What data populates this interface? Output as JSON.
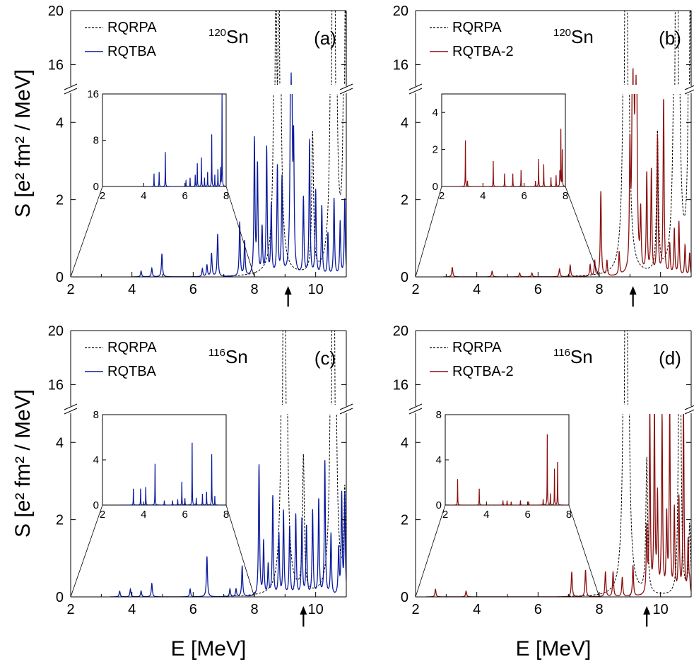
{
  "figure": {
    "ylabel": "S [e² fm² / MeV]",
    "xlabel": "E [MeV]"
  },
  "colors": {
    "rqrpa": "#000000",
    "rqtba": "#0a1a9c",
    "rqtba2": "#8b0f0f"
  },
  "chart_data": [
    {
      "type": "line",
      "panel": "(a)",
      "nucleus": "120",
      "nucleus_symbol": "Sn",
      "color": "#0a1a9c",
      "legend": [
        "RQRPA",
        "RQTBA"
      ],
      "xlim": [
        2,
        11
      ],
      "xticks": [
        "2",
        "4",
        "6",
        "8",
        "10"
      ],
      "ylim_lower": [
        0,
        4.7
      ],
      "ylim_upper": [
        14.5,
        20
      ],
      "yticks_lower": [
        "0",
        "2",
        "4"
      ],
      "yticks_upper": [
        "16",
        "20"
      ],
      "threshold_arrow_x": 9.1,
      "series_rqrpa_peaks": [
        [
          8.7,
          22
        ],
        [
          8.8,
          22
        ],
        [
          9.9,
          3.6
        ],
        [
          10.55,
          22
        ],
        [
          10.62,
          22
        ],
        [
          10.97,
          22
        ]
      ],
      "series_main_peaks": [
        [
          4.3,
          0.15
        ],
        [
          4.65,
          0.22
        ],
        [
          4.98,
          0.6
        ],
        [
          6.3,
          0.2
        ],
        [
          6.45,
          0.3
        ],
        [
          6.6,
          0.6
        ],
        [
          6.8,
          1.1
        ],
        [
          7.52,
          1.4
        ],
        [
          7.68,
          0.9
        ],
        [
          8.0,
          3.5
        ],
        [
          8.1,
          2.8
        ],
        [
          8.25,
          1.2
        ],
        [
          8.4,
          3.3
        ],
        [
          8.55,
          1.8
        ],
        [
          8.75,
          2.8
        ],
        [
          8.9,
          2.5
        ],
        [
          9.2,
          15.2
        ],
        [
          9.28,
          3.0
        ],
        [
          9.6,
          2.0
        ],
        [
          9.8,
          3.5
        ],
        [
          10.0,
          2.2
        ],
        [
          10.2,
          1.8
        ],
        [
          10.4,
          1.1
        ],
        [
          10.6,
          2.0
        ],
        [
          10.8,
          1.4
        ],
        [
          10.95,
          2.0
        ]
      ],
      "inset": {
        "xlim": [
          2,
          8
        ],
        "ylim": [
          0,
          16
        ],
        "xticks": [
          "2",
          "4",
          "6",
          "8"
        ],
        "yticks": [
          "0",
          "8",
          "16"
        ],
        "peaks": [
          [
            4.5,
            2.2
          ],
          [
            4.75,
            2.5
          ],
          [
            5.05,
            6.0
          ],
          [
            6.05,
            1.0
          ],
          [
            6.25,
            1.5
          ],
          [
            6.5,
            2.0
          ],
          [
            6.6,
            4.0
          ],
          [
            6.8,
            5.0
          ],
          [
            6.95,
            1.5
          ],
          [
            7.1,
            2.5
          ],
          [
            7.3,
            9.0
          ],
          [
            7.45,
            2.0
          ],
          [
            7.6,
            3.0
          ],
          [
            7.73,
            3.2
          ],
          [
            7.8,
            16.0
          ]
        ]
      }
    },
    {
      "type": "line",
      "panel": "(b)",
      "nucleus": "120",
      "nucleus_symbol": "Sn",
      "color": "#8b0f0f",
      "legend": [
        "RQRPA",
        "RQTBA-2"
      ],
      "xlim": [
        2,
        11
      ],
      "xticks": [
        "2",
        "4",
        "6",
        "8",
        "10"
      ],
      "ylim_lower": [
        0,
        4.7
      ],
      "ylim_upper": [
        14.5,
        20
      ],
      "yticks_lower": [
        "0",
        "2",
        "4"
      ],
      "yticks_upper": [
        "16",
        "20"
      ],
      "threshold_arrow_x": 9.1,
      "series_rqrpa_peaks": [
        [
          8.85,
          22
        ],
        [
          8.9,
          22
        ],
        [
          9.9,
          3.6
        ],
        [
          10.5,
          22
        ],
        [
          10.55,
          22
        ],
        [
          10.97,
          22
        ]
      ],
      "series_main_peaks": [
        [
          3.2,
          0.25
        ],
        [
          4.5,
          0.15
        ],
        [
          5.4,
          0.1
        ],
        [
          5.8,
          0.1
        ],
        [
          6.7,
          0.2
        ],
        [
          7.05,
          0.3
        ],
        [
          7.7,
          0.3
        ],
        [
          7.85,
          0.4
        ],
        [
          8.05,
          2.2
        ],
        [
          8.25,
          0.4
        ],
        [
          8.65,
          0.6
        ],
        [
          9.0,
          3.0
        ],
        [
          9.1,
          15.2
        ],
        [
          9.2,
          14.6
        ],
        [
          9.35,
          1.5
        ],
        [
          9.55,
          2.6
        ],
        [
          9.7,
          2.7
        ],
        [
          9.9,
          3.6
        ],
        [
          10.1,
          4.6
        ],
        [
          10.3,
          0.8
        ],
        [
          10.45,
          1.2
        ],
        [
          10.6,
          1.4
        ],
        [
          10.8,
          0.8
        ],
        [
          10.95,
          0.6
        ]
      ],
      "inset": {
        "xlim": [
          2,
          8
        ],
        "ylim": [
          0,
          5
        ],
        "xticks": [
          "2",
          "4",
          "6",
          "8"
        ],
        "yticks": [
          "0",
          "2",
          "4"
        ],
        "peaks": [
          [
            3.15,
            2.5
          ],
          [
            3.25,
            0.3
          ],
          [
            4.5,
            1.4
          ],
          [
            5.05,
            0.7
          ],
          [
            5.45,
            0.7
          ],
          [
            5.85,
            0.9
          ],
          [
            6.55,
            0.3
          ],
          [
            6.7,
            1.5
          ],
          [
            6.95,
            1.2
          ],
          [
            7.3,
            0.5
          ],
          [
            7.55,
            0.6
          ],
          [
            7.73,
            0.8
          ],
          [
            7.78,
            3.2
          ],
          [
            7.85,
            2.0
          ]
        ]
      }
    },
    {
      "type": "line",
      "panel": "(c)",
      "nucleus": "116",
      "nucleus_symbol": "Sn",
      "color": "#0a1a9c",
      "legend": [
        "RQRPA",
        "RQTBA"
      ],
      "xlim": [
        2,
        11
      ],
      "xticks": [
        "2",
        "4",
        "6",
        "8",
        "10"
      ],
      "ylim_lower": [
        0,
        4.7
      ],
      "ylim_upper": [
        14.5,
        20
      ],
      "yticks_lower": [
        "0",
        "2",
        "4"
      ],
      "yticks_upper": [
        "16",
        "20"
      ],
      "threshold_arrow_x": 9.6,
      "series_rqrpa_peaks": [
        [
          8.95,
          22
        ],
        [
          9.0,
          22
        ],
        [
          9.6,
          3.5
        ],
        [
          10.55,
          22
        ],
        [
          10.6,
          22
        ],
        [
          10.95,
          2.5
        ]
      ],
      "series_main_peaks": [
        [
          3.6,
          0.15
        ],
        [
          3.95,
          0.2
        ],
        [
          4.3,
          0.15
        ],
        [
          4.65,
          0.35
        ],
        [
          5.9,
          0.2
        ],
        [
          6.45,
          1.05
        ],
        [
          7.2,
          0.2
        ],
        [
          7.4,
          0.2
        ],
        [
          7.6,
          0.8
        ],
        [
          8.15,
          3.4
        ],
        [
          8.3,
          1.4
        ],
        [
          8.45,
          0.8
        ],
        [
          8.6,
          2.6
        ],
        [
          8.8,
          1.6
        ],
        [
          8.95,
          2.2
        ],
        [
          9.15,
          1.8
        ],
        [
          9.35,
          2.1
        ],
        [
          9.55,
          2.0
        ],
        [
          9.7,
          1.8
        ],
        [
          9.9,
          2.2
        ],
        [
          10.1,
          2.5
        ],
        [
          10.3,
          3.5
        ],
        [
          10.5,
          1.6
        ],
        [
          10.75,
          1.2
        ],
        [
          10.85,
          2.6
        ],
        [
          10.95,
          2.6
        ]
      ],
      "inset": {
        "xlim": [
          2,
          8
        ],
        "ylim": [
          0,
          8
        ],
        "xticks": [
          "2",
          "4",
          "6",
          "8"
        ],
        "yticks": [
          "0",
          "4",
          "8"
        ],
        "peaks": [
          [
            3.5,
            1.5
          ],
          [
            3.85,
            1.5
          ],
          [
            4.1,
            1.6
          ],
          [
            4.55,
            3.7
          ],
          [
            5.0,
            0.4
          ],
          [
            5.4,
            0.4
          ],
          [
            5.65,
            0.5
          ],
          [
            5.85,
            2.1
          ],
          [
            6.0,
            0.6
          ],
          [
            6.35,
            5.6
          ],
          [
            6.55,
            0.6
          ],
          [
            6.85,
            1.0
          ],
          [
            7.05,
            1.2
          ],
          [
            7.3,
            4.5
          ],
          [
            7.45,
            0.8
          ]
        ]
      }
    },
    {
      "type": "line",
      "panel": "(d)",
      "nucleus": "116",
      "nucleus_symbol": "Sn",
      "color": "#8b0f0f",
      "legend": [
        "RQRPA",
        "RQTBA-2"
      ],
      "xlim": [
        2,
        11
      ],
      "xticks": [
        "2",
        "4",
        "6",
        "8",
        "10"
      ],
      "ylim_lower": [
        0,
        4.7
      ],
      "ylim_upper": [
        14.5,
        20
      ],
      "yticks_lower": [
        "0",
        "2",
        "4"
      ],
      "yticks_upper": [
        "16",
        "20"
      ],
      "threshold_arrow_x": 9.55,
      "series_rqrpa_peaks": [
        [
          8.85,
          22
        ],
        [
          8.9,
          22
        ],
        [
          9.55,
          3.5
        ],
        [
          10.6,
          4.5
        ],
        [
          10.65,
          4.6
        ],
        [
          10.95,
          1.8
        ]
      ],
      "series_main_peaks": [
        [
          2.65,
          0.2
        ],
        [
          3.65,
          0.15
        ],
        [
          7.1,
          0.65
        ],
        [
          7.55,
          0.7
        ],
        [
          8.2,
          0.65
        ],
        [
          8.45,
          0.65
        ],
        [
          8.75,
          0.5
        ],
        [
          9.1,
          0.8
        ],
        [
          9.55,
          1.7
        ],
        [
          9.65,
          4.7
        ],
        [
          9.8,
          4.8
        ],
        [
          9.9,
          2.5
        ],
        [
          10.05,
          4.6
        ],
        [
          10.2,
          2.0
        ],
        [
          10.3,
          4.8
        ],
        [
          10.45,
          2.2
        ],
        [
          10.6,
          2.5
        ],
        [
          10.75,
          4.8
        ],
        [
          10.9,
          1.4
        ],
        [
          10.95,
          0.3
        ]
      ],
      "inset": {
        "xlim": [
          2,
          8
        ],
        "ylim": [
          0,
          8
        ],
        "xticks": [
          "2",
          "4",
          "6",
          "8"
        ],
        "yticks": [
          "0",
          "4",
          "8"
        ],
        "peaks": [
          [
            2.6,
            2.3
          ],
          [
            3.65,
            1.5
          ],
          [
            4.8,
            0.4
          ],
          [
            5.0,
            0.4
          ],
          [
            5.2,
            0.3
          ],
          [
            5.65,
            0.4
          ],
          [
            6.05,
            0.3
          ],
          [
            6.75,
            0.5
          ],
          [
            6.95,
            6.6
          ],
          [
            7.1,
            1.0
          ],
          [
            7.3,
            3.2
          ],
          [
            7.45,
            4.0
          ]
        ]
      }
    }
  ]
}
